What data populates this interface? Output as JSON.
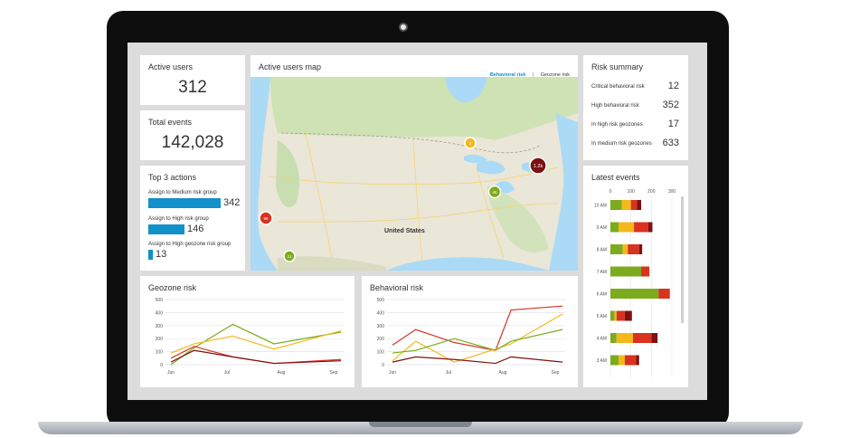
{
  "colors": {
    "green": "#7cab1e",
    "yellow": "#f5b81c",
    "red": "#d9321f",
    "darkred": "#7d1010",
    "blue": "#1190c9"
  },
  "active_users": {
    "title": "Active users",
    "value": "312"
  },
  "total_events": {
    "title": "Total events",
    "value": "142,028"
  },
  "top_actions": {
    "title": "Top 3 actions",
    "items": [
      {
        "label": "Assign to Medium risk group",
        "value": "342",
        "amount": 342
      },
      {
        "label": "Assign to High risk group",
        "value": "146",
        "amount": 146
      },
      {
        "label": "Assign to High geozone risk group",
        "value": "13",
        "amount": 13
      }
    ]
  },
  "map": {
    "title": "Active users map",
    "tab_active": "Behavioral risk",
    "separator": "|",
    "tab_inactive": "Geozone risk",
    "country_label": "United States",
    "markers": [
      {
        "label": "5",
        "color": "#f5b81c"
      },
      {
        "label": "1.2k",
        "color": "#7d1010"
      },
      {
        "label": "46",
        "color": "#7cab1e"
      },
      {
        "label": "98",
        "color": "#d9321f"
      },
      {
        "label": "11",
        "color": "#7cab1e"
      }
    ]
  },
  "risk_summary": {
    "title": "Risk summary",
    "rows": [
      {
        "label": "Critical behavioral risk",
        "value": "12"
      },
      {
        "label": "High behavioral risk",
        "value": "352"
      },
      {
        "label": "In high risk geozones",
        "value": "17"
      },
      {
        "label": "In medium risk geozones",
        "value": "633"
      }
    ]
  },
  "chart_data": [
    {
      "type": "line",
      "title": "Geozone risk",
      "x": [
        "Jun",
        "Jul",
        "Aug",
        "Sep"
      ],
      "ylim": [
        0,
        500
      ],
      "yticks": [
        "500",
        "400",
        "300",
        "200",
        "100",
        "0"
      ],
      "series": [
        {
          "color": "#7cab1e",
          "x": [
            0,
            0.45,
            1.2,
            2.0,
            3.3
          ],
          "values": [
            0,
            130,
            310,
            160,
            250
          ]
        },
        {
          "color": "#f5b81c",
          "x": [
            0,
            0.45,
            1.2,
            2.0,
            3.3
          ],
          "values": [
            90,
            160,
            220,
            120,
            260
          ]
        },
        {
          "color": "#d9321f",
          "x": [
            0,
            0.45,
            1.2,
            2.0,
            3.3
          ],
          "values": [
            50,
            140,
            60,
            10,
            40
          ]
        },
        {
          "color": "#7d1010",
          "x": [
            0,
            0.45,
            1.2,
            2.0,
            3.3
          ],
          "values": [
            20,
            110,
            60,
            10,
            30
          ]
        }
      ]
    },
    {
      "type": "line",
      "title": "Behavioral risk",
      "x": [
        "Jun",
        "Jul",
        "Aug",
        "Sep"
      ],
      "ylim": [
        0,
        500
      ],
      "yticks": [
        "500",
        "400",
        "300",
        "200",
        "100",
        "0"
      ],
      "series": [
        {
          "color": "#d9321f",
          "x": [
            0,
            0.45,
            1.2,
            2.0,
            2.3,
            3.3
          ],
          "values": [
            150,
            270,
            170,
            110,
            420,
            450
          ]
        },
        {
          "color": "#f5b81c",
          "x": [
            0,
            0.45,
            1.2,
            2.0,
            2.3,
            3.3
          ],
          "values": [
            30,
            180,
            20,
            120,
            160,
            390
          ]
        },
        {
          "color": "#7cab1e",
          "x": [
            0,
            0.45,
            1.2,
            2.0,
            2.3,
            3.3
          ],
          "values": [
            90,
            110,
            200,
            110,
            180,
            270
          ]
        },
        {
          "color": "#7d1010",
          "x": [
            0,
            0.45,
            1.2,
            2.0,
            2.3,
            3.3
          ],
          "values": [
            20,
            60,
            40,
            10,
            60,
            20
          ]
        }
      ]
    },
    {
      "type": "bar",
      "title": "Latest events",
      "stacked": true,
      "orientation": "horizontal",
      "xticks": [
        "0",
        "100",
        "200",
        "300"
      ],
      "xlim": [
        0,
        300
      ],
      "categories": [
        "10 AM",
        "9 AM",
        "8 AM",
        "7 AM",
        "6 AM",
        "5 AM",
        "4 AM",
        "3 AM"
      ],
      "series": [
        {
          "name": "green",
          "color": "#7cab1e",
          "values": [
            55,
            40,
            60,
            150,
            235,
            20,
            30,
            40
          ]
        },
        {
          "name": "yellow",
          "color": "#f5b81c",
          "values": [
            45,
            75,
            25,
            0,
            0,
            10,
            80,
            30
          ]
        },
        {
          "name": "red",
          "color": "#d9321f",
          "values": [
            30,
            70,
            55,
            40,
            55,
            40,
            90,
            55
          ]
        },
        {
          "name": "darkred",
          "color": "#7d1010",
          "values": [
            20,
            20,
            15,
            0,
            0,
            35,
            30,
            15
          ]
        }
      ]
    }
  ]
}
